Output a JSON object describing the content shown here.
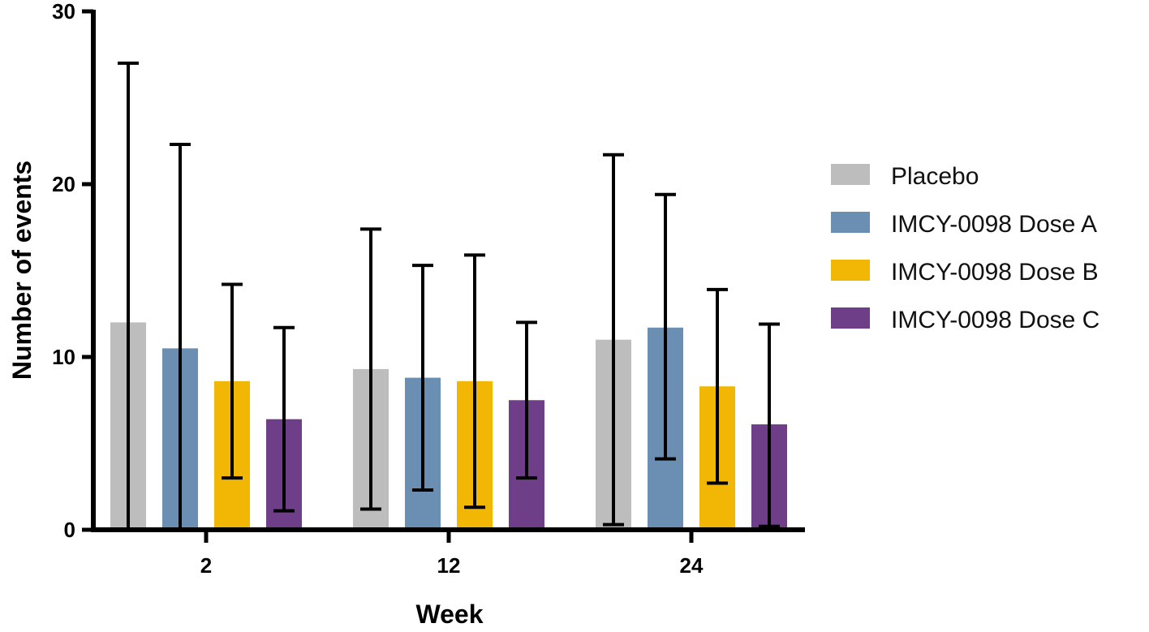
{
  "chart_data": {
    "type": "bar",
    "title": "",
    "xlabel": "Week",
    "ylabel": "Number of events",
    "ylim": [
      0,
      30
    ],
    "yticks": [
      "0",
      "10",
      "20",
      "30"
    ],
    "categories": [
      "2",
      "12",
      "24"
    ],
    "grid": false,
    "legend_position": "right",
    "error_bars": true,
    "series": [
      {
        "name": "Placebo",
        "color": "#bdbdbd",
        "values": [
          12.0,
          9.3,
          11.0
        ],
        "err_low": [
          0.0,
          1.2,
          0.3
        ],
        "err_high": [
          27.0,
          17.4,
          21.7
        ]
      },
      {
        "name": "IMCY-0098 Dose A",
        "color": "#6a8fb3",
        "values": [
          10.5,
          8.8,
          11.7
        ],
        "err_low": [
          0.0,
          2.3,
          4.1
        ],
        "err_high": [
          22.3,
          15.3,
          19.4
        ]
      },
      {
        "name": "IMCY-0098 Dose B",
        "color": "#f2b705",
        "values": [
          8.6,
          8.6,
          8.3
        ],
        "err_low": [
          3.0,
          1.3,
          2.7
        ],
        "err_high": [
          14.2,
          15.9,
          13.9
        ]
      },
      {
        "name": "IMCY-0098 Dose C",
        "color": "#6e3f88",
        "values": [
          6.4,
          7.5,
          6.1
        ],
        "err_low": [
          1.1,
          3.0,
          0.2
        ],
        "err_high": [
          11.7,
          12.0,
          11.9
        ]
      }
    ]
  }
}
